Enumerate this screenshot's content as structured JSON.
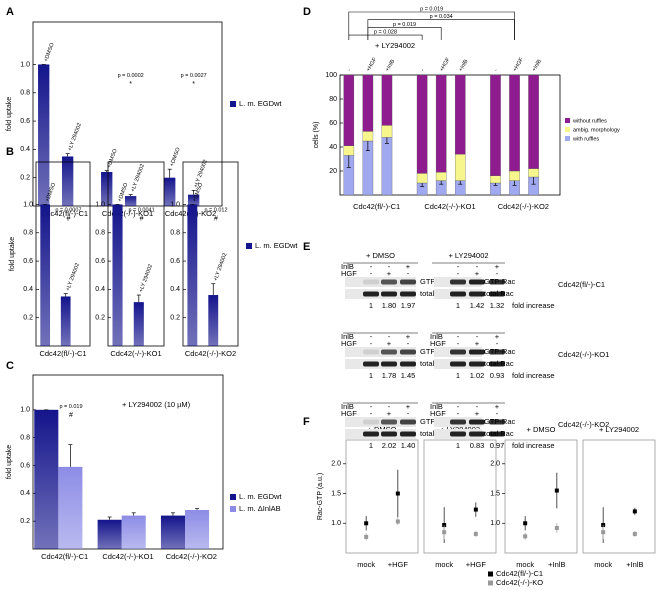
{
  "chart_data": [
    {
      "panel": "A",
      "type": "bar",
      "ylabel": "fold uptake",
      "categories": [
        "Cdc42(fl/-)-C1",
        "Cdc42(-/-)-KO1",
        "Cdc42(-/-)-KO2"
      ],
      "bar_labels": [
        "+DMSO",
        "+LY 294002"
      ],
      "series": [
        {
          "name": "L. m. EGDwt",
          "color": "#14148c",
          "values": [
            [
              1.0,
              0.35
            ],
            [
              0.24,
              0.07
            ],
            [
              0.2,
              0.08
            ]
          ],
          "errors": [
            [
              0,
              0.02
            ],
            [
              0.01,
              0.01
            ],
            [
              0.06,
              0.03
            ]
          ]
        }
      ],
      "ylim": [
        0,
        1.3
      ],
      "yticks": [
        0.2,
        0.4,
        0.6,
        0.8,
        {
          "value": 1,
          "label": "1.0"
        }
      ],
      "pvalues": [
        null,
        "p = 0.0002",
        "p = 0.0027"
      ],
      "significance": [
        null,
        "*",
        "*"
      ]
    },
    {
      "panel": "B",
      "type": "bar",
      "ylabel": "fold uptake",
      "categories": [
        "Cdc42(fl/-)-C1",
        "Cdc42(-/-)-KO1",
        "Cdc42(-/-)-KO2"
      ],
      "bar_labels": [
        "+DMSO",
        "+LY 294002"
      ],
      "series": [
        {
          "name": "L. m. EGDwt",
          "color": "#14148c",
          "values": [
            [
              1.0,
              0.35
            ],
            [
              1.0,
              0.31
            ],
            [
              1.0,
              0.36
            ]
          ],
          "errors": [
            [
              0,
              0.02
            ],
            [
              0,
              0.05
            ],
            [
              0,
              0.08
            ]
          ]
        }
      ],
      "ylim": [
        0,
        1.3
      ],
      "yticks": [
        0.2,
        0.4,
        0.6,
        0.8,
        {
          "value": 1,
          "label": "1.0"
        }
      ],
      "pvalues": [
        "p = 0.0007",
        "p = 0.0041",
        "p = 0.012"
      ],
      "significance": [
        "#",
        "#",
        "#"
      ]
    },
    {
      "panel": "C",
      "type": "bar",
      "ylabel": "fold uptake",
      "subtitle": "+ LY294002 (10 µM)",
      "categories": [
        "Cdc42(fl/-)-C1",
        "Cdc42(-/-)-KO1",
        "Cdc42(-/-)-KO2"
      ],
      "series": [
        {
          "name": "L. m. EGDwt",
          "color": "#14148c",
          "values": [
            1.0,
            0.21,
            0.24
          ],
          "errors": [
            0,
            0.02,
            0.02
          ]
        },
        {
          "name": "L. m. ΔInlAB",
          "color": "#8c8ce6",
          "values": [
            0.59,
            0.24,
            0.28
          ],
          "errors": [
            0.16,
            0.02,
            0.01
          ]
        }
      ],
      "ylim": [
        0,
        1.25
      ],
      "yticks": [
        0.2,
        0.4,
        0.6,
        0.8,
        {
          "value": 1,
          "label": "1.0"
        }
      ],
      "pvalues": [
        "p = 0.019",
        null,
        null
      ],
      "significance": [
        "#",
        null,
        null
      ]
    },
    {
      "panel": "D",
      "type": "stacked_bar",
      "ylabel": "cells (%)",
      "subtitle": "+ LY294002",
      "categories": [
        "Cdc42(fl/-)-C1",
        "Cdc42(-/-)-KO1",
        "Cdc42(-/-)-KO2"
      ],
      "bar_labels": [
        "-",
        "+HGF",
        "+InlB"
      ],
      "series": [
        {
          "name": "with ruffles",
          "color": "#a0a8f0",
          "values": [
            [
              33,
              45,
              48
            ],
            [
              10,
              12,
              12
            ],
            [
              10,
              12,
              15
            ]
          ],
          "errors": [
            [
              10,
              8,
              5
            ],
            [
              3,
              3,
              3
            ],
            [
              2,
              4,
              6
            ]
          ]
        },
        {
          "name": "ambig. morphology",
          "color": "#f6f68c",
          "values": [
            [
              8,
              8,
              10
            ],
            [
              8,
              7,
              22
            ],
            [
              6,
              8,
              7
            ]
          ]
        },
        {
          "name": "without ruffles",
          "color": "#8e1c8e",
          "values": [
            [
              59,
              47,
              42
            ],
            [
              82,
              81,
              66
            ],
            [
              84,
              80,
              78
            ]
          ]
        }
      ],
      "ylim": [
        0,
        100
      ],
      "yticks": [
        20,
        40,
        60,
        80,
        100
      ],
      "comparisons": [
        "p = 0.019",
        "p = 0.034",
        "p = 0.019",
        "p = 0.028"
      ]
    },
    {
      "panel": "F",
      "type": "dot",
      "ylabel": "Rac-GTP (a.u.)",
      "facets": [
        {
          "title": "+ DMSO",
          "categories": [
            "mock",
            "+HGF"
          ]
        },
        {
          "title": "+ LY294002",
          "categories": [
            "mock",
            "+HGF"
          ]
        },
        {
          "title": "+ DMSO",
          "categories": [
            "mock",
            "+InlB"
          ]
        },
        {
          "title": "+ LY294002",
          "categories": [
            "mock",
            "+InlB"
          ]
        }
      ],
      "series": [
        {
          "name": "Cdc42(fl/-)-C1",
          "color": "#000000",
          "values": [
            [
              1.0,
              1.5
            ],
            [
              0.97,
              1.23
            ],
            [
              1.0,
              1.55
            ],
            [
              0.97,
              1.2
            ]
          ],
          "errors": [
            [
              0.12,
              0.4
            ],
            [
              0.3,
              0.12
            ],
            [
              0.12,
              0.3
            ],
            [
              0.3,
              0.06
            ]
          ]
        },
        {
          "name": "Cdc42(-/-)-KO",
          "color": "#999999",
          "values": [
            [
              0.77,
              1.03
            ],
            [
              0.85,
              0.82
            ],
            [
              0.78,
              0.92
            ],
            [
              0.85,
              0.82
            ]
          ],
          "errors": [
            [
              0.06,
              0.06
            ],
            [
              0.12,
              0.05
            ],
            [
              0.06,
              0.08
            ],
            [
              0.12,
              0.05
            ]
          ]
        }
      ],
      "ylim": [
        0.5,
        2.4
      ],
      "yticks": [
        {
          "value": 1,
          "label": "1.0"
        },
        1.5,
        {
          "value": 2,
          "label": "2.0"
        }
      ]
    }
  ],
  "blots": {
    "panel": "E",
    "treatments": [
      "+ DMSO",
      "+ LY294002"
    ],
    "factors": [
      {
        "name": "InlB",
        "signs": [
          "-",
          "-",
          "+"
        ]
      },
      {
        "name": "HGF",
        "signs": [
          "-",
          "+",
          "-"
        ]
      }
    ],
    "bands": [
      "GTP-Rac",
      "total Rac"
    ],
    "fold_label": "fold increase",
    "lines": [
      {
        "name": "Cdc42(fl/-)-C1",
        "fold": [
          [
            "1",
            "1.80",
            "1.97"
          ],
          [
            "1",
            "1.42",
            "1.32"
          ]
        ]
      },
      {
        "name": "Cdc42(-/-)-KO1",
        "fold": [
          [
            "1",
            "1.78",
            "1.45"
          ],
          [
            "1",
            "1.02",
            "0.93"
          ]
        ]
      },
      {
        "name": "Cdc42(-/-)-KO2",
        "fold": [
          [
            "1",
            "2.02",
            "1.40"
          ],
          [
            "1",
            "0.83",
            "0.97"
          ]
        ]
      }
    ]
  }
}
